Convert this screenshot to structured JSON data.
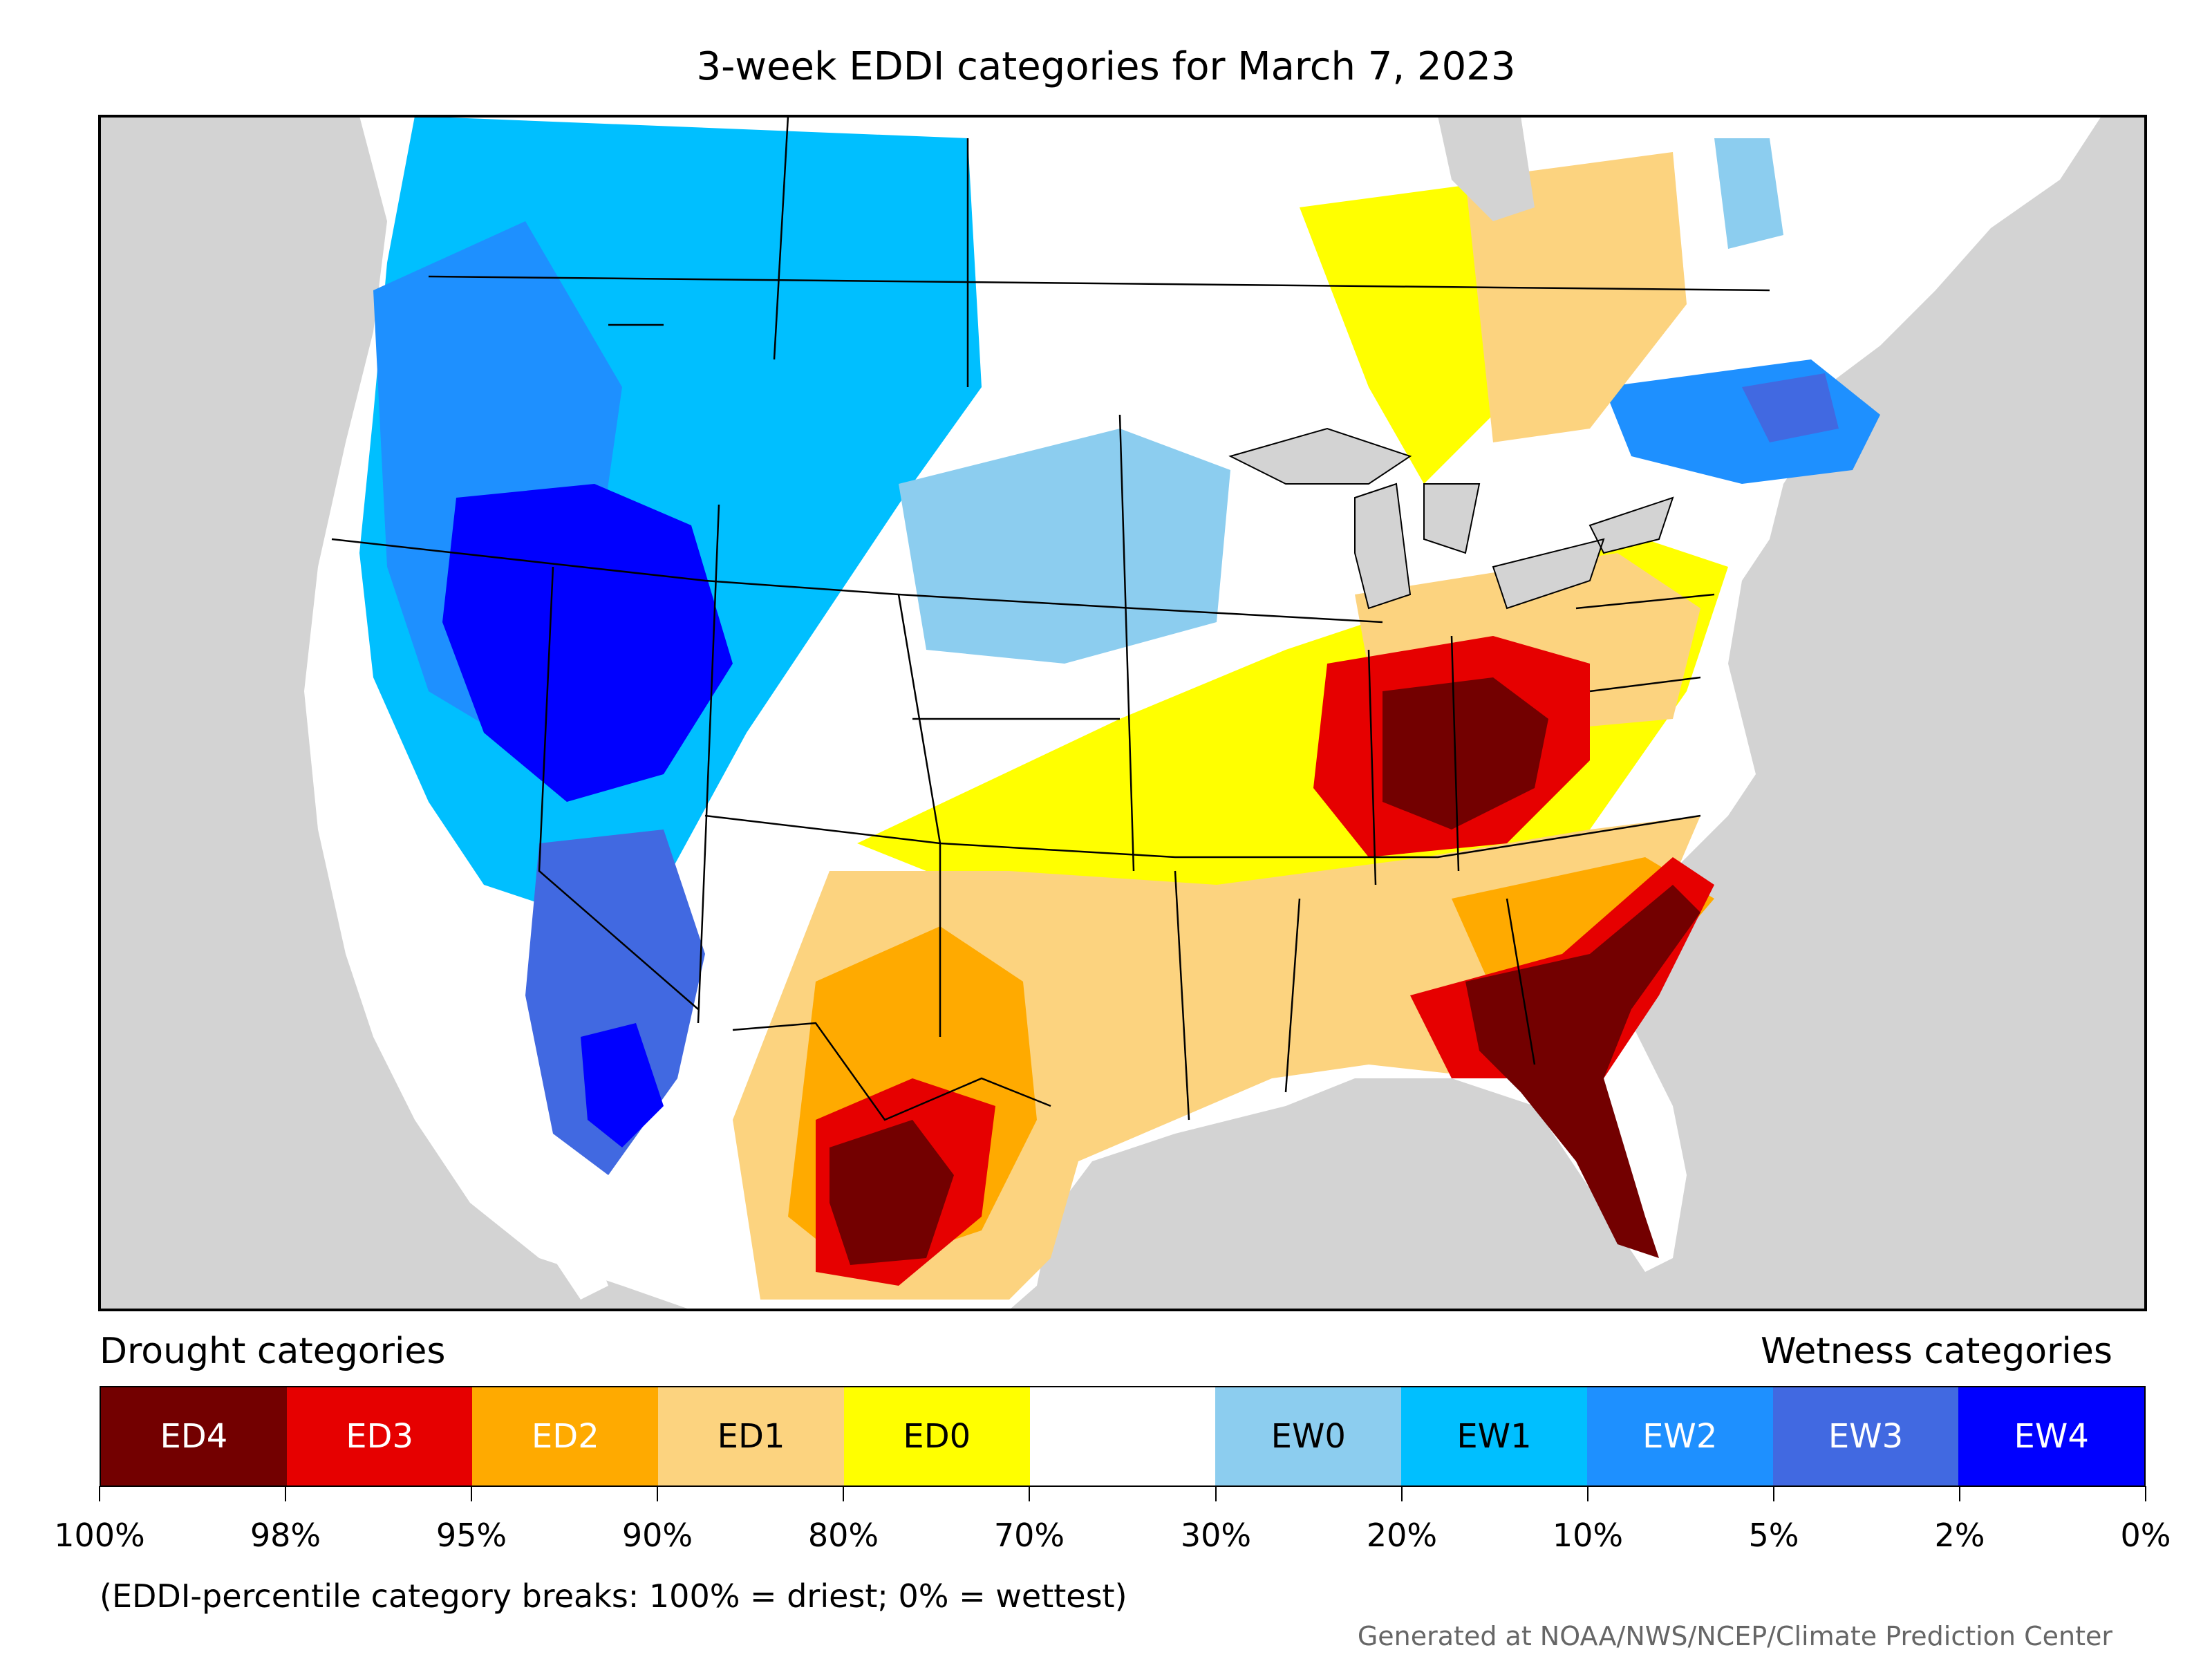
{
  "title": "3-week EDDI categories for March 7, 2023",
  "legend": {
    "drought_heading": "Drought categories",
    "wetness_heading": "Wetness categories",
    "categories": [
      {
        "label": "ED4",
        "color": "#730000",
        "text_color": "#ffffff"
      },
      {
        "label": "ED3",
        "color": "#e60000",
        "text_color": "#ffffff"
      },
      {
        "label": "ED2",
        "color": "#ffaa00",
        "text_color": "#ffffff"
      },
      {
        "label": "ED1",
        "color": "#fcd37f",
        "text_color": "#000000"
      },
      {
        "label": "ED0",
        "color": "#ffff00",
        "text_color": "#000000"
      },
      {
        "label": "",
        "color": "#ffffff",
        "text_color": "#000000"
      },
      {
        "label": "EW0",
        "color": "#8ccdef",
        "text_color": "#000000"
      },
      {
        "label": "EW1",
        "color": "#00bfff",
        "text_color": "#000000"
      },
      {
        "label": "EW2",
        "color": "#1e90ff",
        "text_color": "#ffffff"
      },
      {
        "label": "EW3",
        "color": "#4169e1",
        "text_color": "#ffffff"
      },
      {
        "label": "EW4",
        "color": "#0000ff",
        "text_color": "#ffffff"
      }
    ],
    "breaks": [
      "100%",
      "98%",
      "95%",
      "90%",
      "80%",
      "70%",
      "30%",
      "20%",
      "10%",
      "5%",
      "2%",
      "0%"
    ]
  },
  "note": "(EDDI-percentile category breaks: 100% = driest; 0% = wettest)",
  "credit": "Generated at NOAA/NWS/NCEP/Climate Prediction Center",
  "map": {
    "region": "Contiguous United States and surrounding North America",
    "background_color": "#d3d3d3",
    "water_color": "#d3d3d3"
  }
}
